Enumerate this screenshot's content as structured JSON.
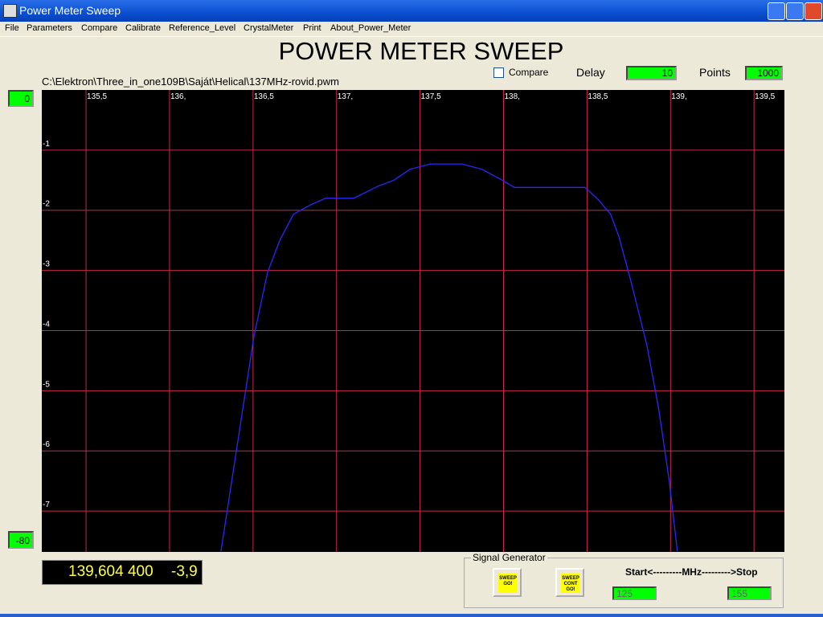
{
  "window": {
    "title": "Power Meter Sweep"
  },
  "menu": [
    "File",
    "Parameters",
    "Compare",
    "Calibrate",
    "Reference_Level",
    "CrystalMeter",
    "Print",
    "About_Power_Meter"
  ],
  "heading": "POWER METER SWEEP",
  "file_path": "C:\\Elektron\\Three_in_one109B\\Saját\\Helical\\137MHz-rovid.pwm",
  "compare_label": "Compare",
  "delay": {
    "label": "Delay",
    "value": "10"
  },
  "points": {
    "label": "Points",
    "value": "1000"
  },
  "scale_top": "0",
  "scale_bottom": "-80",
  "readout": {
    "frequency": "139,604 400",
    "level": "-3,9"
  },
  "signal_generator": {
    "title": "Signal Generator",
    "sweep_button": [
      "SWEEP",
      "GO!"
    ],
    "cont_button": [
      "SWEEP",
      "CONT",
      "GO!"
    ],
    "range_label": "Start<---------MHz--------->Stop",
    "start": "125",
    "stop": "155"
  },
  "chart_data": {
    "type": "line",
    "color": "#2828ff",
    "grid": true,
    "xlim": [
      135.235,
      139.682
    ],
    "ylim": [
      -7.68,
      0
    ],
    "xticks": [
      {
        "value": 135.5,
        "label": "135,5"
      },
      {
        "value": 136,
        "label": "136,"
      },
      {
        "value": 136.5,
        "label": "136,5"
      },
      {
        "value": 137,
        "label": "137,"
      },
      {
        "value": 137.5,
        "label": "137,5"
      },
      {
        "value": 138,
        "label": "138,"
      },
      {
        "value": 138.5,
        "label": "138,5"
      },
      {
        "value": 139,
        "label": "139,"
      },
      {
        "value": 139.5,
        "label": "139,5"
      }
    ],
    "yticks": [
      -1,
      -2,
      -3,
      -4,
      -5,
      -6,
      -7
    ],
    "x": [
      136.308,
      136.505,
      136.587,
      136.66,
      136.741,
      136.79,
      136.852,
      136.934,
      137.102,
      137.175,
      137.247,
      137.343,
      137.439,
      137.56,
      137.752,
      137.872,
      137.992,
      138.065,
      138.488,
      138.57,
      138.642,
      138.69,
      138.762,
      138.858,
      138.93,
      138.993,
      139.041
    ],
    "values": [
      -7.67,
      -4.1,
      -3.03,
      -2.5,
      -2.07,
      -1.99,
      -1.9,
      -1.8,
      -1.8,
      -1.7,
      -1.6,
      -1.5,
      -1.32,
      -1.23,
      -1.23,
      -1.32,
      -1.5,
      -1.62,
      -1.62,
      -1.83,
      -2.07,
      -2.43,
      -3.17,
      -4.24,
      -5.31,
      -6.51,
      -7.67
    ]
  }
}
